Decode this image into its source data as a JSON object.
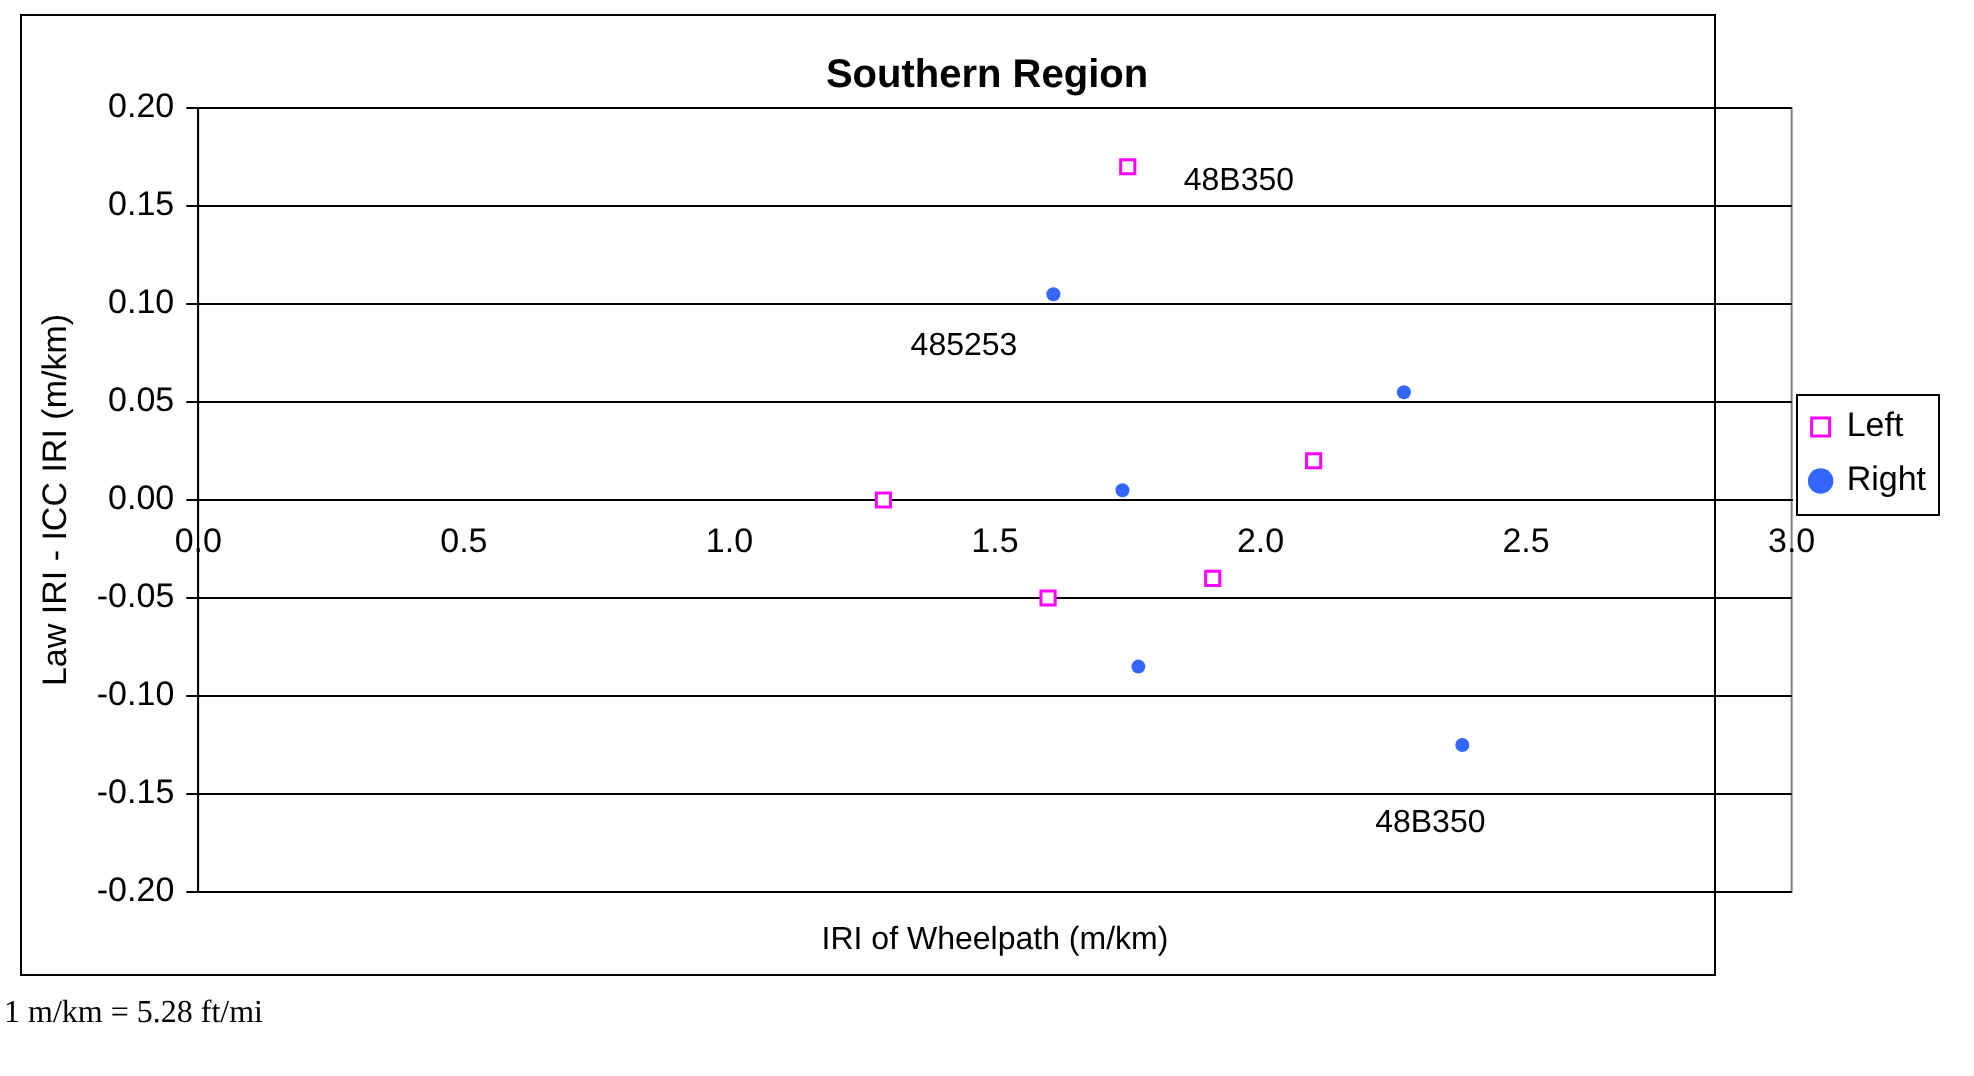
{
  "chart_data": {
    "type": "scatter",
    "title": "Southern Region",
    "xlabel": "IRI of Wheelpath (m/km)",
    "ylabel": "Law IRI - ICC IRI (m/km)",
    "series": [
      {
        "name": "Left",
        "color": "#ff00ff",
        "marker": "square",
        "x": [
          1.29,
          1.75,
          2.1,
          1.6,
          1.91
        ],
        "values": [
          0.0,
          0.17,
          0.02,
          -0.05,
          -0.04
        ]
      },
      {
        "name": "Right",
        "color": "#3366ff",
        "marker": "circle",
        "x": [
          1.61,
          2.27,
          1.74,
          1.77,
          2.38
        ],
        "values": [
          0.105,
          0.055,
          0.005,
          -0.085,
          -0.125
        ]
      }
    ],
    "xlim": [
      0,
      3
    ],
    "xticks": [
      {
        "value": 0,
        "label": "0.0"
      },
      {
        "value": 0.5,
        "label": "0.5"
      },
      {
        "value": 1,
        "label": "1.0"
      },
      {
        "value": 1.5,
        "label": "1.5"
      },
      {
        "value": 2,
        "label": "2.0"
      },
      {
        "value": 2.5,
        "label": "2.5"
      },
      {
        "value": 3,
        "label": "3.0"
      }
    ],
    "ylim": [
      -0.2,
      0.2
    ],
    "yticks": [
      {
        "value": -0.2,
        "label": "-0.20"
      },
      {
        "value": -0.15,
        "label": "-0.15"
      },
      {
        "value": -0.1,
        "label": "-0.10"
      },
      {
        "value": -0.05,
        "label": "-0.05"
      },
      {
        "value": 0,
        "label": "0.00"
      },
      {
        "value": 0.05,
        "label": "0.05"
      },
      {
        "value": 0.1,
        "label": "0.10"
      },
      {
        "value": 0.15,
        "label": "0.15"
      },
      {
        "value": 0.2,
        "label": "0.20"
      }
    ],
    "grid": "y",
    "legend": "right",
    "annotations": [
      {
        "text": "48B350",
        "x": 1.75,
        "y": 0.17
      },
      {
        "text": "485253",
        "x": 1.61,
        "y": 0.105
      },
      {
        "text": "48B350",
        "x": 2.38,
        "y": -0.125
      },
      "1 m/km = 5.28 ft/mi"
    ]
  }
}
